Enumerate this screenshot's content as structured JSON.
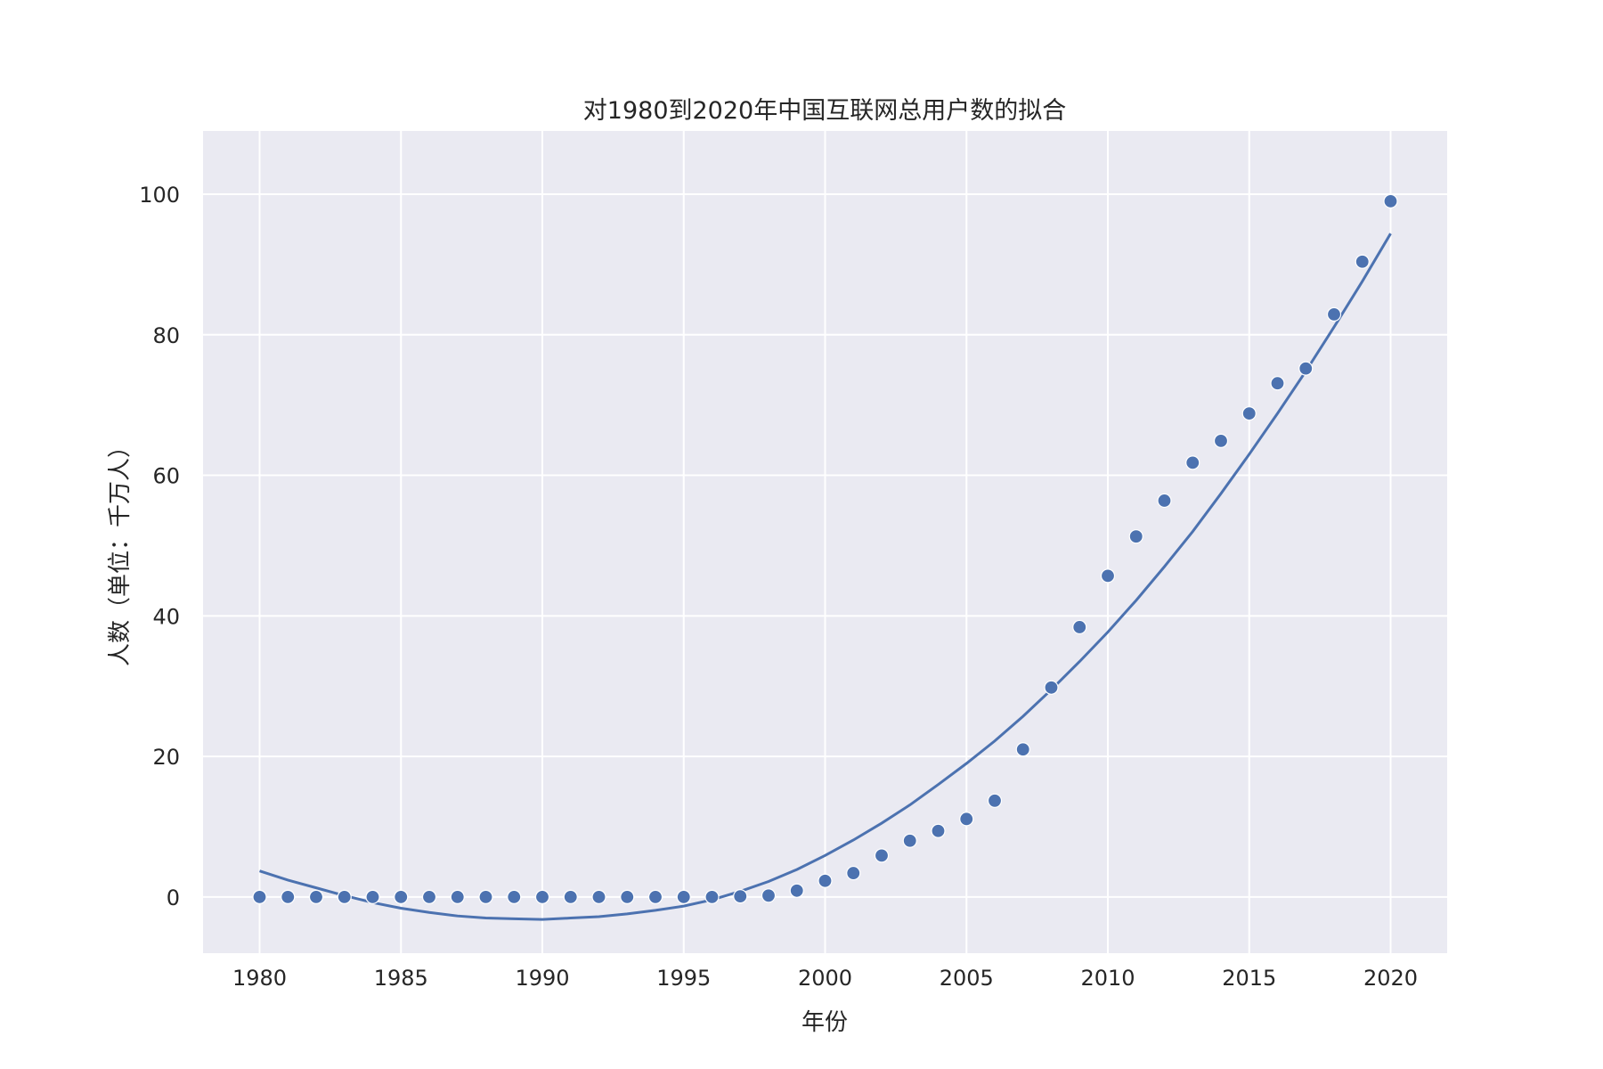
{
  "chart_data": {
    "type": "scatter",
    "title": "对1980到2020年中国互联网总用户数的拟合",
    "xlabel": "年份",
    "ylabel": "人数（单位：千万人）",
    "xlim": [
      1978,
      2022
    ],
    "ylim": [
      -8,
      109
    ],
    "xticks": [
      1980,
      1985,
      1990,
      1995,
      2000,
      2005,
      2010,
      2015,
      2020
    ],
    "yticks": [
      0,
      20,
      40,
      60,
      80,
      100
    ],
    "grid": true,
    "background": "#eaeaf2",
    "grid_color": "#ffffff",
    "series": [
      {
        "kind": "scatter",
        "color": "#4c72b0",
        "x": [
          1980,
          1981,
          1982,
          1983,
          1984,
          1985,
          1986,
          1987,
          1988,
          1989,
          1990,
          1991,
          1992,
          1993,
          1994,
          1995,
          1996,
          1997,
          1998,
          1999,
          2000,
          2001,
          2002,
          2003,
          2004,
          2005,
          2006,
          2007,
          2008,
          2009,
          2010,
          2011,
          2012,
          2013,
          2014,
          2015,
          2016,
          2017,
          2018,
          2019,
          2020
        ],
        "y": [
          0,
          0,
          0,
          0,
          0,
          0,
          0,
          0,
          0,
          0,
          0,
          0,
          0,
          0,
          0,
          0,
          0,
          0.1,
          0.2,
          0.9,
          2.3,
          3.4,
          5.9,
          8.0,
          9.4,
          11.1,
          13.7,
          21.0,
          29.8,
          38.4,
          45.7,
          51.3,
          56.4,
          61.8,
          64.9,
          68.8,
          73.1,
          75.2,
          82.9,
          90.4,
          99.0
        ]
      },
      {
        "kind": "line",
        "color": "#4c72b0",
        "x": [
          1980,
          1981,
          1982,
          1983,
          1984,
          1985,
          1986,
          1987,
          1988,
          1989,
          1990,
          1991,
          1992,
          1993,
          1994,
          1995,
          1996,
          1997,
          1998,
          1999,
          2000,
          2001,
          2002,
          2003,
          2004,
          2005,
          2006,
          2007,
          2008,
          2009,
          2010,
          2011,
          2012,
          2013,
          2014,
          2015,
          2016,
          2017,
          2018,
          2019,
          2020
        ],
        "y": [
          3.7,
          2.4,
          1.3,
          0.2,
          -0.8,
          -1.6,
          -2.2,
          -2.7,
          -3.0,
          -3.1,
          -3.2,
          -3.0,
          -2.8,
          -2.4,
          -1.9,
          -1.3,
          -0.4,
          0.8,
          2.2,
          3.9,
          5.9,
          8.1,
          10.5,
          13.1,
          16.0,
          19.0,
          22.2,
          25.7,
          29.5,
          33.5,
          37.7,
          42.2,
          47.0,
          52.0,
          57.4,
          63.0,
          68.8,
          74.8,
          81.1,
          87.6,
          94.4
        ]
      }
    ]
  }
}
